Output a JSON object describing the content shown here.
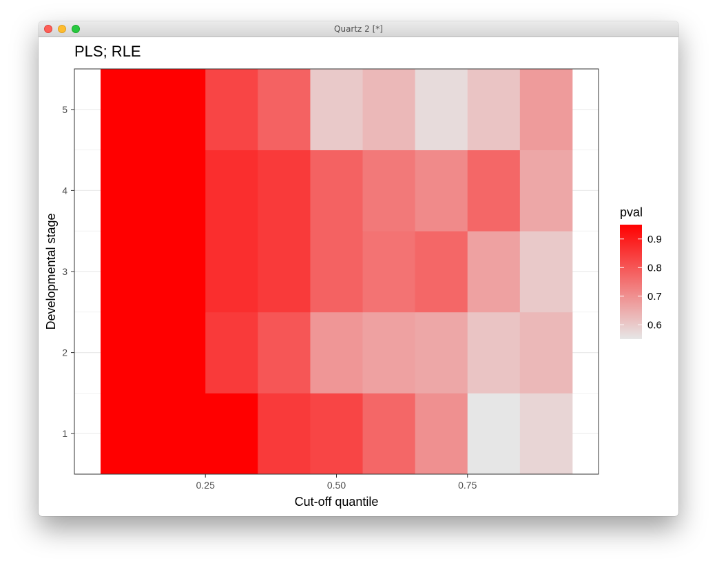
{
  "window": {
    "title": "Quartz 2 [*]"
  },
  "colors": {
    "low": "#e6e6e6",
    "high": "#ff0000",
    "grid": "#ebebeb",
    "panel_border": "#333333"
  },
  "chart_data": {
    "type": "heatmap",
    "title": "PLS; RLE",
    "xlabel": "Cut-off quantile",
    "ylabel": "Developmental stage",
    "legend_title": "pval",
    "legend_position": "right",
    "x_ticks": [
      "0.25",
      "0.50",
      "0.75"
    ],
    "x_tick_values": [
      0.25,
      0.5,
      0.75
    ],
    "y_ticks": [
      "1",
      "2",
      "3",
      "4",
      "5"
    ],
    "y_tick_values": [
      1,
      2,
      3,
      4,
      5
    ],
    "xlim": [
      0.0,
      1.0
    ],
    "ylim": [
      0.5,
      5.5
    ],
    "fill_range": [
      0.55,
      0.95
    ],
    "legend_breaks": [
      0.6,
      0.7,
      0.8,
      0.9
    ],
    "legend_labels": [
      "0.6",
      "0.7",
      "0.8",
      "0.9"
    ],
    "x": [
      0.1,
      0.2,
      0.3,
      0.4,
      0.5,
      0.6,
      0.7,
      0.8,
      0.9
    ],
    "y": [
      1,
      2,
      3,
      4,
      5
    ],
    "values": [
      [
        0.95,
        0.95,
        0.95,
        0.85,
        0.83,
        0.77,
        0.7,
        0.55,
        0.58
      ],
      [
        0.95,
        0.95,
        0.85,
        0.8,
        0.69,
        0.67,
        0.66,
        0.61,
        0.63
      ],
      [
        0.95,
        0.95,
        0.87,
        0.85,
        0.78,
        0.75,
        0.77,
        0.67,
        0.6
      ],
      [
        0.95,
        0.95,
        0.87,
        0.85,
        0.78,
        0.74,
        0.71,
        0.77,
        0.66
      ],
      [
        0.95,
        0.95,
        0.83,
        0.78,
        0.6,
        0.63,
        0.57,
        0.61,
        0.68
      ]
    ]
  }
}
